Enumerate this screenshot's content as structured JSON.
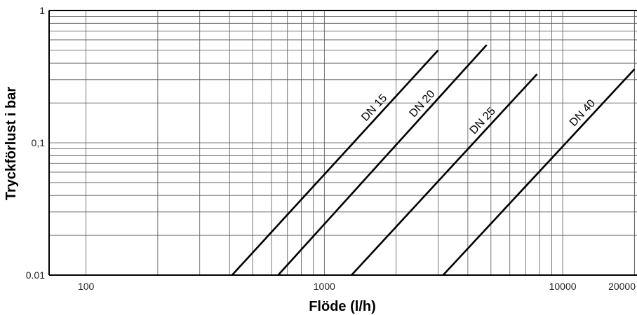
{
  "chart_data": {
    "type": "line",
    "title": "",
    "xlabel": "Flöde (l/h)",
    "ylabel": "Tryckförlust i bar",
    "x_scale": "log",
    "y_scale": "log",
    "xlim": [
      70,
      20500
    ],
    "ylim": [
      0.01,
      1
    ],
    "grid": true,
    "x_ticks": [
      {
        "value": 100,
        "label": "100"
      },
      {
        "value": 1000,
        "label": "1000"
      },
      {
        "value": 10000,
        "label": "10000"
      },
      {
        "value": 20000,
        "label": "20000"
      }
    ],
    "y_ticks": [
      {
        "value": 1,
        "label": "1"
      },
      {
        "value": 0.1,
        "label": "0,1"
      },
      {
        "value": 0.01,
        "label": "0.01"
      }
    ],
    "series": [
      {
        "name": "DN 15",
        "x": [
          410,
          3000
        ],
        "y": [
          0.01,
          0.5
        ]
      },
      {
        "name": "DN 20",
        "x": [
          640,
          4800
        ],
        "y": [
          0.01,
          0.55
        ]
      },
      {
        "name": "DN 25",
        "x": [
          1300,
          7800
        ],
        "y": [
          0.01,
          0.33
        ]
      },
      {
        "name": "DN 40",
        "x": [
          3150,
          20000
        ],
        "y": [
          0.01,
          0.36
        ]
      }
    ]
  }
}
